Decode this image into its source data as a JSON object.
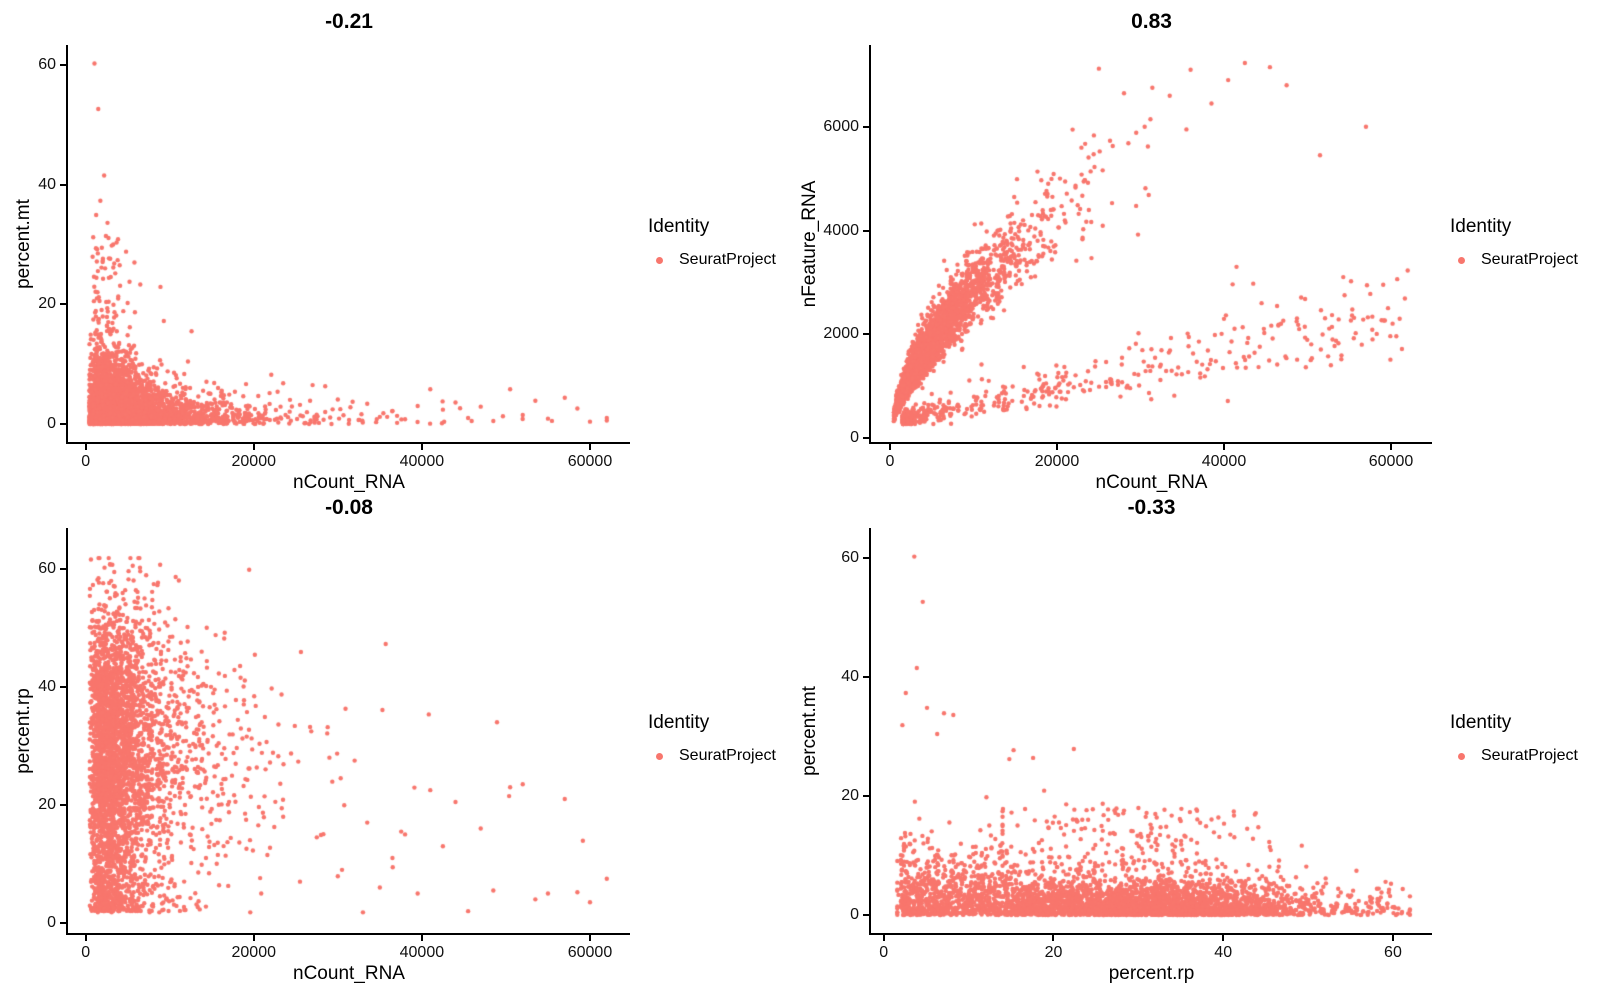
{
  "legend": {
    "title": "Identity",
    "items": [
      {
        "label": "SeuratProject",
        "color": "#F8766D"
      }
    ]
  },
  "chart_data": {
    "type": "scatter",
    "figure_kind": "Seurat FeatureScatter QC grid (2x2 panels), panel title = Pearson correlation",
    "point_color": "#F8766D",
    "point_radius": 2.2,
    "grid": false,
    "legend_position": "right-of-each-panel",
    "panels": [
      {
        "id": "mt_vs_ncount",
        "title": "-0.21",
        "correlation": -0.21,
        "xlabel": "nCount_RNA",
        "ylabel": "percent.mt",
        "x_ticks": [
          0,
          20000,
          40000,
          60000
        ],
        "y_ticks": [
          0,
          20,
          40,
          60
        ],
        "x_domain": [
          -2100,
          64760
        ],
        "y_domain": [
          -3,
          63.3
        ],
        "x_data_range": [
          450,
          62000
        ],
        "y_data_range": [
          0,
          60.2
        ],
        "n_points": 4260,
        "seed": 11,
        "outliers": [
          [
            1050,
            60.2
          ],
          [
            1500,
            52.6
          ],
          [
            2200,
            41.5
          ],
          [
            1750,
            37.3
          ],
          [
            1250,
            34.9
          ],
          [
            2600,
            33.6
          ],
          [
            900,
            31.2
          ],
          [
            3100,
            29.8
          ],
          [
            2050,
            27.6
          ],
          [
            3400,
            26.8
          ],
          [
            4100,
            23.1
          ],
          [
            6500,
            23.3
          ],
          [
            8900,
            22.9
          ],
          [
            12600,
            15.5
          ],
          [
            9300,
            17.2
          ]
        ],
        "far_points": [
          [
            23500,
            6.8
          ],
          [
            25500,
            3.2
          ],
          [
            27000,
            6.5
          ],
          [
            28500,
            2.0
          ],
          [
            30000,
            4.1
          ],
          [
            31500,
            2.8
          ],
          [
            33500,
            3.4
          ],
          [
            35000,
            1.2
          ],
          [
            36500,
            2.2
          ],
          [
            38000,
            0.8
          ],
          [
            39500,
            3.0
          ],
          [
            41000,
            5.8
          ],
          [
            42500,
            2.4
          ],
          [
            44000,
            3.6
          ],
          [
            45500,
            1.0
          ],
          [
            47000,
            2.9
          ],
          [
            48500,
            0.5
          ],
          [
            50500,
            5.8
          ],
          [
            52000,
            1.5
          ],
          [
            53500,
            3.9
          ],
          [
            55000,
            0.9
          ],
          [
            57000,
            4.4
          ],
          [
            58500,
            2.6
          ],
          [
            60000,
            0.4
          ],
          [
            62000,
            0.6
          ]
        ]
      },
      {
        "id": "nfeature_vs_ncount",
        "title": "0.83",
        "correlation": 0.83,
        "xlabel": "nCount_RNA",
        "ylabel": "nFeature_RNA",
        "x_ticks": [
          0,
          20000,
          40000,
          60000
        ],
        "y_ticks": [
          0,
          2000,
          4000,
          6000
        ],
        "x_domain": [
          -2275,
          64910
        ],
        "y_domain": [
          -77,
          7577
        ],
        "x_data_range": [
          450,
          62000
        ],
        "y_data_range": [
          260,
          7230
        ],
        "n_points": 4235,
        "seed": 22,
        "outliers": [
          [
            30500,
            6000
          ],
          [
            33500,
            6600
          ],
          [
            35500,
            5950
          ],
          [
            36000,
            7100
          ],
          [
            38500,
            6450
          ],
          [
            40500,
            6900
          ],
          [
            42500,
            7230
          ],
          [
            45500,
            7150
          ],
          [
            47500,
            6800
          ],
          [
            51500,
            5450
          ],
          [
            57000,
            6000
          ],
          [
            62000,
            3230
          ],
          [
            41500,
            3300
          ],
          [
            44500,
            2600
          ],
          [
            49000,
            2100
          ],
          [
            53000,
            1900
          ],
          [
            56500,
            1800
          ]
        ],
        "far_points": []
      },
      {
        "id": "rp_vs_ncount",
        "title": "-0.08",
        "correlation": -0.08,
        "xlabel": "nCount_RNA",
        "ylabel": "percent.rp",
        "x_ticks": [
          0,
          20000,
          40000,
          60000
        ],
        "y_ticks": [
          0,
          20,
          40,
          60
        ],
        "x_domain": [
          -2100,
          64760
        ],
        "y_domain": [
          -1.7,
          66.9
        ],
        "x_data_range": [
          500,
          62000
        ],
        "y_data_range": [
          1.5,
          61.8
        ],
        "n_points": 3625,
        "seed": 33,
        "outliers": [
          [
            6400,
            61.8
          ],
          [
            5600,
            60.5
          ],
          [
            7200,
            58.9
          ],
          [
            5100,
            58.2
          ],
          [
            8100,
            57.4
          ],
          [
            4400,
            55.9
          ]
        ],
        "far_points": [
          [
            23500,
            18
          ],
          [
            25500,
            7
          ],
          [
            27500,
            14.5
          ],
          [
            29000,
            28
          ],
          [
            30500,
            9
          ],
          [
            32000,
            27.5
          ],
          [
            33500,
            17
          ],
          [
            35000,
            6
          ],
          [
            36500,
            11
          ],
          [
            38000,
            15
          ],
          [
            39500,
            5
          ],
          [
            41000,
            22.5
          ],
          [
            42500,
            13
          ],
          [
            44000,
            20.5
          ],
          [
            45500,
            2
          ],
          [
            47000,
            16
          ],
          [
            48500,
            5.5
          ],
          [
            50500,
            23
          ],
          [
            52000,
            23.5
          ],
          [
            53500,
            4
          ],
          [
            55000,
            5
          ],
          [
            57000,
            21
          ],
          [
            58500,
            5.2
          ],
          [
            60000,
            3.5
          ],
          [
            62000,
            7.5
          ]
        ]
      },
      {
        "id": "mt_vs_rp",
        "title": "-0.33",
        "correlation": -0.33,
        "xlabel": "percent.rp",
        "ylabel": "percent.mt",
        "x_ticks": [
          0,
          20,
          40,
          60
        ],
        "y_ticks": [
          0,
          20,
          40,
          60
        ],
        "x_domain": [
          -1.5,
          64.6
        ],
        "y_domain": [
          -3,
          65
        ],
        "x_data_range": [
          1.6,
          62
        ],
        "y_data_range": [
          0,
          60.2
        ],
        "n_points": 3945,
        "seed": 44,
        "outliers": [
          [
            3.6,
            60.2
          ],
          [
            4.6,
            52.6
          ],
          [
            3.9,
            41.5
          ],
          [
            2.6,
            37.3
          ],
          [
            5.1,
            34.8
          ],
          [
            8.2,
            33.6
          ],
          [
            7.1,
            33.9
          ],
          [
            2.2,
            31.9
          ],
          [
            6.3,
            30.4
          ],
          [
            15.3,
            27.7
          ],
          [
            17.6,
            26.4
          ],
          [
            14.8,
            26.2
          ],
          [
            22.4,
            27.9
          ],
          [
            18.9,
            20.9
          ],
          [
            21.5,
            18.6
          ],
          [
            12.1,
            19.8
          ],
          [
            25.8,
            18.7
          ]
        ],
        "far_points": [
          [
            59.5,
            3.8
          ],
          [
            61.8,
            0.3
          ],
          [
            58.8,
            1.2
          ],
          [
            57.5,
            2.1
          ]
        ]
      }
    ]
  }
}
